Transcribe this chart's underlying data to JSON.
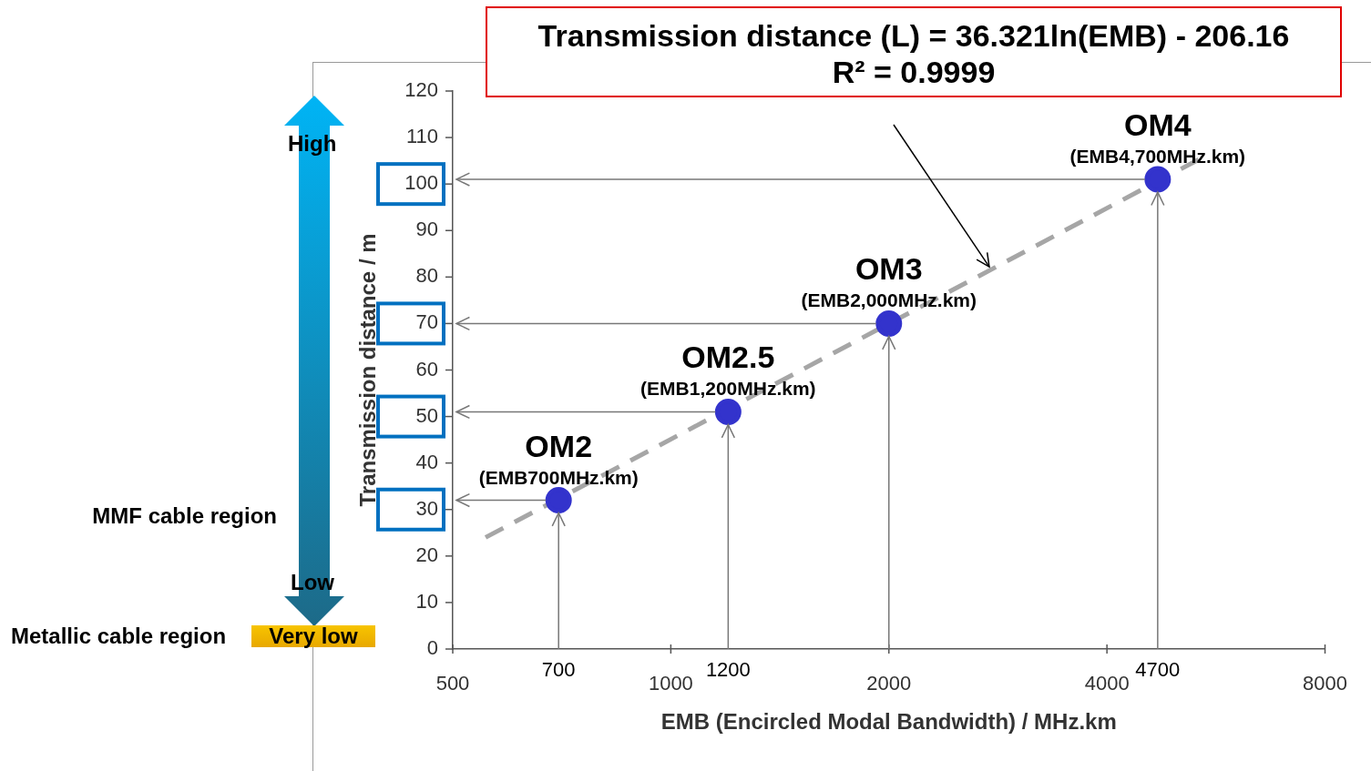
{
  "chart_data": {
    "type": "scatter",
    "title": "Transmission distance (L) = 36.321ln(EMB) - 206.16",
    "subtitle": "R² = 0.9999",
    "xlabel": "EMB (Encircled Modal Bandwidth) / MHz.km",
    "ylabel": "Transmission distance / m",
    "log": "x",
    "xlim": [
      500,
      8000
    ],
    "xticks": [
      500,
      1000,
      2000,
      4000,
      8000
    ],
    "ylim": [
      0,
      120
    ],
    "yticks": [
      0,
      10,
      20,
      30,
      40,
      50,
      60,
      70,
      80,
      90,
      100,
      110,
      120
    ],
    "grid": false,
    "legend": false,
    "marker": "circle",
    "series": [
      {
        "type": "scatter",
        "color": "#3333cc",
        "x": [
          700,
          1200,
          2000,
          4700
        ],
        "values": [
          32,
          51,
          70,
          101
        ]
      },
      {
        "type": "line",
        "color": "#a6a6a6",
        "line_style": "dashed",
        "marker": "none",
        "x": [
          555,
          5465
        ],
        "values": [
          24,
          106
        ]
      }
    ],
    "annotations": [
      {
        "text": "OM2\n(EMB700MHz.km)",
        "x": 700,
        "y": 32
      },
      {
        "text": "OM2.5\n(EMB1,200MHz.km)",
        "x": 1200,
        "y": 51
      },
      {
        "text": "OM3\n(EMB2,000MHz.km)",
        "x": 2000,
        "y": 70
      },
      {
        "text": "OM4\n(EMB4,700MHz.km)",
        "x": 4700,
        "y": 101
      },
      {
        "text": "700",
        "x": 700
      },
      {
        "text": "1200",
        "x": 1200
      },
      {
        "text": "4700",
        "x": 4700
      },
      "High",
      "Low",
      "MMF cable region",
      "Metallic cable region",
      "Very low"
    ]
  }
}
